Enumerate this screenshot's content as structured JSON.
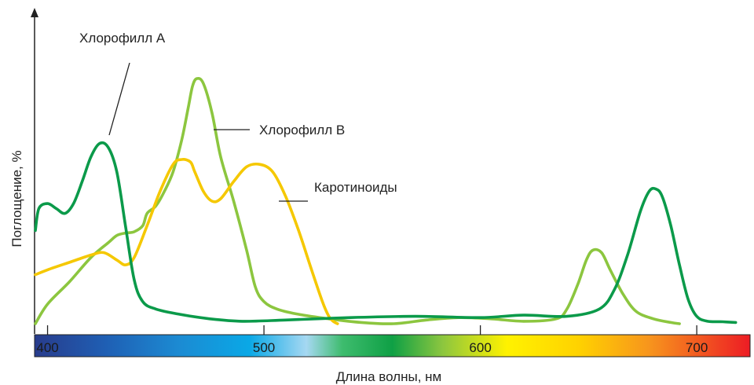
{
  "chart_data": {
    "type": "line",
    "xlabel": "Длина волны, нм",
    "ylabel": "Поглощение, %",
    "xlim": [
      390,
      725
    ],
    "ylim": [
      0,
      100
    ],
    "x_ticks": [
      400,
      500,
      600,
      700
    ],
    "grid": false,
    "legend": "inline labels with leader lines",
    "spectrum_bar": true,
    "series": [
      {
        "name": "Хлорофилл А",
        "color": "#0b9a4a",
        "points": [
          [
            390,
            38
          ],
          [
            396,
            47
          ],
          [
            400,
            49
          ],
          [
            404,
            47
          ],
          [
            408,
            45
          ],
          [
            412,
            49
          ],
          [
            416,
            58
          ],
          [
            420,
            68
          ],
          [
            424,
            73.5
          ],
          [
            428,
            72
          ],
          [
            432,
            62
          ],
          [
            436,
            40
          ],
          [
            440,
            18
          ],
          [
            444,
            9
          ],
          [
            450,
            6
          ],
          [
            460,
            4
          ],
          [
            475,
            2
          ],
          [
            490,
            1
          ],
          [
            510,
            1.5
          ],
          [
            540,
            2.5
          ],
          [
            570,
            3
          ],
          [
            600,
            2.5
          ],
          [
            620,
            3.5
          ],
          [
            640,
            3
          ],
          [
            655,
            6
          ],
          [
            662,
            14
          ],
          [
            668,
            28
          ],
          [
            674,
            46
          ],
          [
            678,
            54
          ],
          [
            681,
            55
          ],
          [
            684,
            52
          ],
          [
            688,
            40
          ],
          [
            692,
            24
          ],
          [
            696,
            10
          ],
          [
            700,
            3
          ],
          [
            705,
            1
          ],
          [
            712,
            0.8
          ],
          [
            718,
            0.5
          ]
        ]
      },
      {
        "name": "Хлорофилл B",
        "color": "#8cc63f",
        "points": [
          [
            390,
            0
          ],
          [
            400,
            8
          ],
          [
            410,
            17
          ],
          [
            420,
            27
          ],
          [
            428,
            33
          ],
          [
            432,
            36
          ],
          [
            436,
            37
          ],
          [
            440,
            37.5
          ],
          [
            444,
            40
          ],
          [
            446,
            45
          ],
          [
            450,
            48
          ],
          [
            454,
            54
          ],
          [
            458,
            62
          ],
          [
            462,
            75
          ],
          [
            465,
            88
          ],
          [
            467,
            97
          ],
          [
            469,
            100
          ],
          [
            472,
            98
          ],
          [
            476,
            86
          ],
          [
            480,
            68
          ],
          [
            486,
            50
          ],
          [
            492,
            30
          ],
          [
            496,
            15
          ],
          [
            500,
            9
          ],
          [
            506,
            6
          ],
          [
            515,
            4
          ],
          [
            530,
            2
          ],
          [
            545,
            0.5
          ],
          [
            560,
            0
          ],
          [
            575,
            1.5
          ],
          [
            590,
            2.5
          ],
          [
            605,
            2
          ],
          [
            620,
            1
          ],
          [
            635,
            2
          ],
          [
            640,
            6
          ],
          [
            645,
            16
          ],
          [
            649,
            26
          ],
          [
            652,
            30
          ],
          [
            656,
            29
          ],
          [
            660,
            22
          ],
          [
            666,
            12
          ],
          [
            672,
            5
          ],
          [
            680,
            2
          ],
          [
            688,
            0.5
          ],
          [
            692,
            0
          ]
        ]
      },
      {
        "name": "Каротиноиды",
        "color": "#f5c800",
        "points": [
          [
            390,
            20
          ],
          [
            400,
            22
          ],
          [
            410,
            25
          ],
          [
            420,
            28
          ],
          [
            426,
            29
          ],
          [
            432,
            26
          ],
          [
            436,
            24
          ],
          [
            440,
            27
          ],
          [
            446,
            40
          ],
          [
            452,
            54
          ],
          [
            458,
            65
          ],
          [
            462,
            67
          ],
          [
            466,
            66
          ],
          [
            468,
            62
          ],
          [
            472,
            54
          ],
          [
            476,
            50
          ],
          [
            480,
            51
          ],
          [
            486,
            58
          ],
          [
            492,
            64
          ],
          [
            498,
            65
          ],
          [
            504,
            62
          ],
          [
            510,
            52
          ],
          [
            516,
            38
          ],
          [
            522,
            22
          ],
          [
            527,
            9
          ],
          [
            530,
            3
          ],
          [
            532,
            1
          ],
          [
            534,
            0
          ]
        ]
      }
    ],
    "annotations": [
      {
        "text": "Хлорофилл А",
        "series": 0
      },
      {
        "text": "Хлорофилл B",
        "series": 1
      },
      {
        "text": "Каротиноиды",
        "series": 2
      }
    ]
  }
}
